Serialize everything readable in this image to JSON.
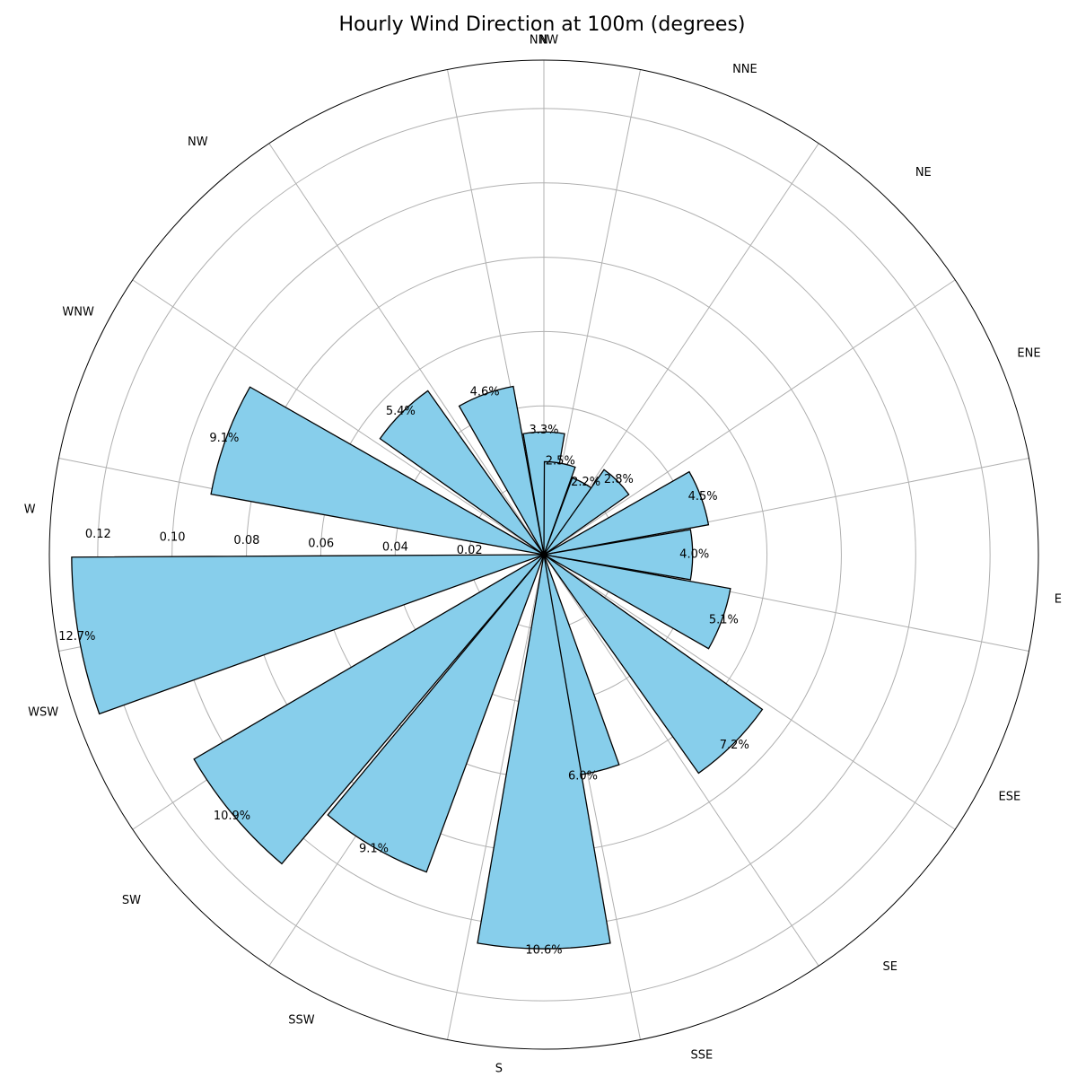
{
  "chart_data": {
    "type": "bar",
    "polar": true,
    "title": "Hourly Wind Direction at 100m (degrees)",
    "color": "#87ceeb",
    "edge_color": "#000000",
    "grid": true,
    "rmax": 0.133,
    "r_ticks": [
      0.02,
      0.04,
      0.06,
      0.08,
      0.1,
      0.12
    ],
    "r_tick_labels": [
      "0.02",
      "0.04",
      "0.06",
      "0.08",
      "0.10",
      "0.12"
    ],
    "direction_tick_labels": [
      "NNW",
      "NNE",
      "NE",
      "ENE",
      "E",
      "ESE",
      "SE",
      "SSE",
      "S",
      "SSW",
      "SW",
      "WSW",
      "W",
      "WNW",
      "NW",
      "N"
    ],
    "bars": [
      {
        "angle": 0,
        "value": 0.033,
        "label": "3.3%"
      },
      {
        "angle": 10,
        "value": 0.025,
        "label": "2.5%"
      },
      {
        "angle": 30,
        "value": 0.022,
        "label": "2.2%"
      },
      {
        "angle": 45,
        "value": 0.028,
        "label": "2.8%"
      },
      {
        "angle": 70,
        "value": 0.045,
        "label": "4.5%"
      },
      {
        "angle": 90,
        "value": 0.04,
        "label": "4.0%"
      },
      {
        "angle": 110,
        "value": 0.051,
        "label": "5.1%"
      },
      {
        "angle": 135,
        "value": 0.072,
        "label": "7.2%"
      },
      {
        "angle": 170,
        "value": 0.06,
        "label": "6.0%"
      },
      {
        "angle": 180,
        "value": 0.106,
        "label": "10.6%"
      },
      {
        "angle": 210,
        "value": 0.091,
        "label": "9.1%"
      },
      {
        "angle": 230,
        "value": 0.109,
        "label": "10.9%"
      },
      {
        "angle": 260,
        "value": 0.127,
        "label": "12.7%"
      },
      {
        "angle": 290,
        "value": 0.091,
        "label": "9.1%"
      },
      {
        "angle": 315,
        "value": 0.054,
        "label": "5.4%"
      },
      {
        "angle": 340,
        "value": 0.046,
        "label": "4.6%"
      }
    ]
  }
}
